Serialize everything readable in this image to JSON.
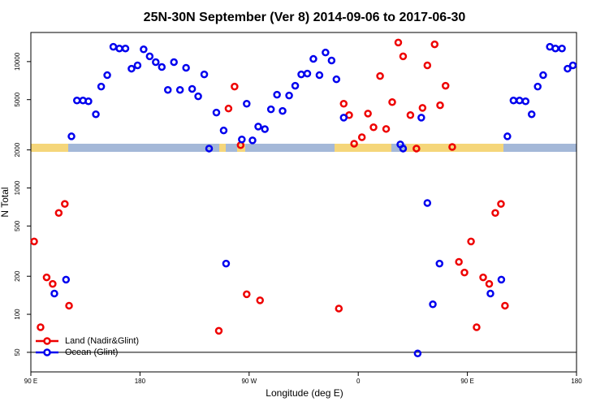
{
  "chart_data": {
    "type": "scatter",
    "title": "25N-30N September (Ver 8)   2014-09-06 to 2017-06-30",
    "x_label": "Longitude (deg E)",
    "y_label": "N Total",
    "xlim": [
      90,
      540
    ],
    "xticks": [
      {
        "value": 90,
        "label": "90 E"
      },
      180,
      {
        "value": 270,
        "label": "90 W"
      },
      {
        "value": 360,
        "label": "0"
      },
      {
        "value": 450,
        "label": "90 E"
      },
      {
        "value": 540,
        "label": "180"
      }
    ],
    "ylim": [
      35,
      17000
    ],
    "yticks": [
      50,
      100,
      200,
      500,
      1000,
      2000,
      5000,
      10000
    ],
    "log_y": true,
    "hline": 50,
    "legend": "bottom left",
    "series": [
      {
        "name": "Land (Nadir&Glint)",
        "color": "#ee0000",
        "x": [
          92.7,
          98,
          103,
          108,
          113,
          118,
          121.5,
          245,
          253,
          258,
          263,
          268,
          279,
          344,
          348,
          352.5,
          356.6,
          363,
          368,
          372.6,
          378,
          383,
          388,
          393,
          397,
          403,
          408,
          413,
          417,
          423,
          427.5,
          432,
          437.5,
          443,
          447.6,
          453,
          457.6,
          463,
          468,
          473,
          477.7,
          481
        ],
        "values": [
          377,
          79,
          196,
          174,
          634,
          747,
          117,
          74,
          4250,
          6340,
          2180,
          144,
          129,
          111,
          4640,
          3770,
          2240,
          2520,
          3880,
          3020,
          7690,
          2930,
          4780,
          14150,
          11000,
          3770,
          2050,
          4300,
          9340,
          13700,
          4510,
          6440,
          2110,
          260,
          214,
          377,
          79,
          196,
          174,
          634,
          747,
          117
        ]
      },
      {
        "name": "Ocean (Glint)",
        "color": "#0000ee",
        "x": [
          109.4,
          119,
          123.5,
          128,
          133,
          137.5,
          143.6,
          148,
          153,
          158,
          163,
          168,
          173,
          178,
          183,
          188,
          193,
          198,
          203,
          208,
          213,
          218,
          223,
          228,
          233,
          237,
          243,
          249,
          251,
          264,
          268,
          272.8,
          277.5,
          283,
          288,
          293,
          297.6,
          303,
          308,
          313,
          318,
          323,
          328,
          333,
          338,
          342,
          348,
          394.7,
          397,
          409,
          412,
          417,
          421.5,
          427,
          469,
          478,
          483,
          488,
          493,
          498,
          503,
          508,
          512.5,
          518,
          522.6,
          528,
          532.6,
          537
        ],
        "values": [
          146,
          188,
          2560,
          4920,
          4920,
          4850,
          3830,
          6340,
          7810,
          13100,
          12700,
          12700,
          8790,
          9340,
          12500,
          11000,
          9900,
          9060,
          5970,
          9900,
          5970,
          8930,
          6080,
          5310,
          7920,
          2050,
          3950,
          2850,
          252,
          2420,
          4640,
          2380,
          3060,
          2920,
          4190,
          5470,
          4070,
          5390,
          6440,
          7920,
          8040,
          10500,
          7810,
          11800,
          10200,
          7240,
          3600,
          2210,
          2050,
          49,
          3600,
          760,
          120,
          252,
          146,
          188,
          2560,
          4920,
          4920,
          4850,
          3830,
          6340,
          7810,
          13100,
          12700,
          12700,
          8790,
          9340
        ]
      }
    ]
  }
}
